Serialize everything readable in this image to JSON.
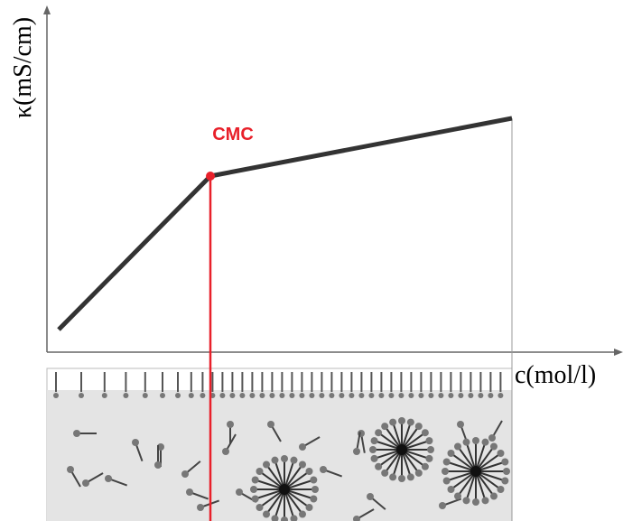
{
  "diagram": {
    "y_axis_label": "κ(mS/cm)",
    "x_axis_label": "c(mol/l)",
    "marker_label": "CMC"
  }
}
